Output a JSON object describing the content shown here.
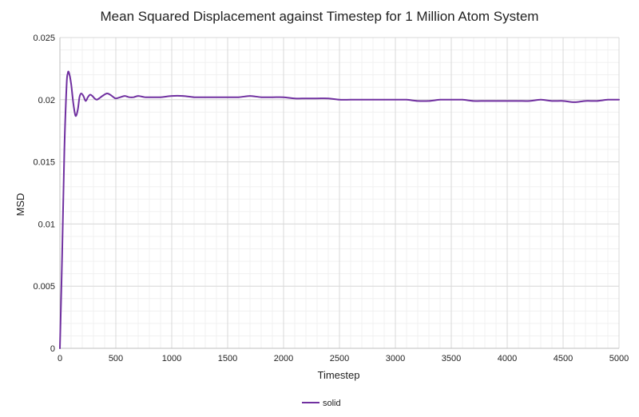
{
  "chart_data": {
    "type": "line",
    "title": "Mean Squared Displacement against Timestep for 1 Million Atom System",
    "xlabel": "Timestep",
    "ylabel": "MSD",
    "xlim": [
      0,
      5000
    ],
    "ylim": [
      0,
      0.025
    ],
    "x_ticks": [
      "0",
      "500",
      "1000",
      "1500",
      "2000",
      "2500",
      "3000",
      "3500",
      "4000",
      "4500",
      "5000"
    ],
    "y_ticks": [
      "0",
      "0.005",
      "0.01",
      "0.015",
      "0.02",
      "0.025"
    ],
    "x_tick_values": [
      0,
      500,
      1000,
      1500,
      2000,
      2500,
      3000,
      3500,
      4000,
      4500,
      5000
    ],
    "y_tick_values": [
      0,
      0.005,
      0.01,
      0.015,
      0.02,
      0.025
    ],
    "grid": true,
    "minor_grid": true,
    "legend_position": "bottom",
    "series": [
      {
        "name": "solid",
        "color": "#7030A0",
        "x": [
          0,
          20,
          40,
          60,
          70,
          80,
          100,
          120,
          140,
          160,
          175,
          190,
          210,
          230,
          250,
          270,
          290,
          310,
          330,
          350,
          380,
          420,
          450,
          480,
          500,
          540,
          580,
          620,
          660,
          700,
          760,
          820,
          900,
          1000,
          1100,
          1200,
          1300,
          1400,
          1500,
          1600,
          1700,
          1800,
          1900,
          2000,
          2100,
          2200,
          2300,
          2400,
          2500,
          2600,
          2700,
          2800,
          2900,
          3000,
          3100,
          3200,
          3300,
          3400,
          3500,
          3600,
          3700,
          3800,
          3900,
          4000,
          4100,
          4200,
          4300,
          4400,
          4500,
          4600,
          4700,
          4800,
          4900,
          5000
        ],
        "values": [
          0,
          0.0075,
          0.016,
          0.0212,
          0.0221,
          0.0222,
          0.0213,
          0.0197,
          0.0187,
          0.0192,
          0.0202,
          0.0205,
          0.0203,
          0.0199,
          0.0202,
          0.0204,
          0.0203,
          0.0201,
          0.02,
          0.0201,
          0.0203,
          0.0205,
          0.0204,
          0.0202,
          0.0201,
          0.0202,
          0.0203,
          0.0202,
          0.0202,
          0.0203,
          0.0202,
          0.0202,
          0.0202,
          0.0203,
          0.0203,
          0.0202,
          0.0202,
          0.0202,
          0.0202,
          0.0202,
          0.0203,
          0.0202,
          0.0202,
          0.0202,
          0.0201,
          0.0201,
          0.0201,
          0.0201,
          0.02,
          0.02,
          0.02,
          0.02,
          0.02,
          0.02,
          0.02,
          0.0199,
          0.0199,
          0.02,
          0.02,
          0.02,
          0.0199,
          0.0199,
          0.0199,
          0.0199,
          0.0199,
          0.0199,
          0.02,
          0.0199,
          0.0199,
          0.0198,
          0.0199,
          0.0199,
          0.02,
          0.02
        ]
      }
    ]
  }
}
